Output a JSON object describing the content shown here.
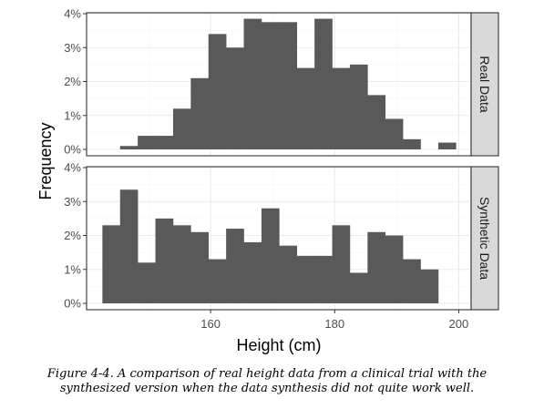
{
  "chart_data": {
    "type": "bar",
    "subtype": "faceted-histogram",
    "xlabel": "Height (cm)",
    "ylabel": "Frequency",
    "xlim": [
      140,
      202
    ],
    "ylim": [
      0,
      0.04
    ],
    "xticks": [
      160,
      180,
      200
    ],
    "yticks": [
      0,
      0.01,
      0.02,
      0.03,
      0.04
    ],
    "ytick_labels": [
      "0%",
      "1%",
      "2%",
      "3%",
      "4%"
    ],
    "bin_width": 2.85,
    "theme": "bw-grid",
    "bar_color": "#595959",
    "panels": [
      {
        "label": "Real Data",
        "bins": [
          {
            "x0": 145.4,
            "x1": 148.25,
            "value": 0.001
          },
          {
            "x0": 148.25,
            "x1": 151.1,
            "value": 0.004
          },
          {
            "x0": 151.1,
            "x1": 153.95,
            "value": 0.004
          },
          {
            "x0": 153.95,
            "x1": 156.8,
            "value": 0.012
          },
          {
            "x0": 156.8,
            "x1": 159.65,
            "value": 0.021
          },
          {
            "x0": 159.65,
            "x1": 162.5,
            "value": 0.034
          },
          {
            "x0": 162.5,
            "x1": 165.35,
            "value": 0.03
          },
          {
            "x0": 165.35,
            "x1": 168.2,
            "value": 0.0385
          },
          {
            "x0": 168.2,
            "x1": 171.05,
            "value": 0.0375
          },
          {
            "x0": 171.05,
            "x1": 173.9,
            "value": 0.0375
          },
          {
            "x0": 173.9,
            "x1": 176.75,
            "value": 0.024
          },
          {
            "x0": 176.75,
            "x1": 179.6,
            "value": 0.0385
          },
          {
            "x0": 179.6,
            "x1": 182.45,
            "value": 0.024
          },
          {
            "x0": 182.45,
            "x1": 185.3,
            "value": 0.025
          },
          {
            "x0": 185.3,
            "x1": 188.15,
            "value": 0.016
          },
          {
            "x0": 188.15,
            "x1": 191.0,
            "value": 0.009
          },
          {
            "x0": 191.0,
            "x1": 193.85,
            "value": 0.003
          },
          {
            "x0": 193.85,
            "x1": 196.7,
            "value": 0
          },
          {
            "x0": 196.7,
            "x1": 199.55,
            "value": 0.002
          }
        ]
      },
      {
        "label": "Synthetic Data",
        "bins": [
          {
            "x0": 142.55,
            "x1": 145.4,
            "value": 0.023
          },
          {
            "x0": 145.4,
            "x1": 148.25,
            "value": 0.0335
          },
          {
            "x0": 148.25,
            "x1": 151.1,
            "value": 0.012
          },
          {
            "x0": 151.1,
            "x1": 153.95,
            "value": 0.025
          },
          {
            "x0": 153.95,
            "x1": 156.8,
            "value": 0.023
          },
          {
            "x0": 156.8,
            "x1": 159.65,
            "value": 0.021
          },
          {
            "x0": 159.65,
            "x1": 162.5,
            "value": 0.013
          },
          {
            "x0": 162.5,
            "x1": 165.35,
            "value": 0.022
          },
          {
            "x0": 165.35,
            "x1": 168.2,
            "value": 0.018
          },
          {
            "x0": 168.2,
            "x1": 171.05,
            "value": 0.028
          },
          {
            "x0": 171.05,
            "x1": 173.9,
            "value": 0.017
          },
          {
            "x0": 173.9,
            "x1": 176.75,
            "value": 0.014
          },
          {
            "x0": 176.75,
            "x1": 179.6,
            "value": 0.014
          },
          {
            "x0": 179.6,
            "x1": 182.45,
            "value": 0.023
          },
          {
            "x0": 182.45,
            "x1": 185.3,
            "value": 0.009
          },
          {
            "x0": 185.3,
            "x1": 188.15,
            "value": 0.021
          },
          {
            "x0": 188.15,
            "x1": 191.0,
            "value": 0.02
          },
          {
            "x0": 191.0,
            "x1": 193.85,
            "value": 0.013
          },
          {
            "x0": 193.85,
            "x1": 196.7,
            "value": 0.01
          }
        ]
      }
    ],
    "caption": "Figure 4-4. A comparison of real height data from a clinical trial with the synthesized version when the data synthesis did not quite work well."
  },
  "caption": {
    "line1": "Figure 4-4. A comparison of real height data from a clinical trial with the",
    "line2": "synthesized version when the data synthesis did not quite work well."
  },
  "colors": {
    "bar": "#595959",
    "panel_border": "#333333",
    "grid_major": "#ebebeb",
    "grid_minor": "#f5f5f5",
    "strip_background": "#d9d9d9"
  }
}
